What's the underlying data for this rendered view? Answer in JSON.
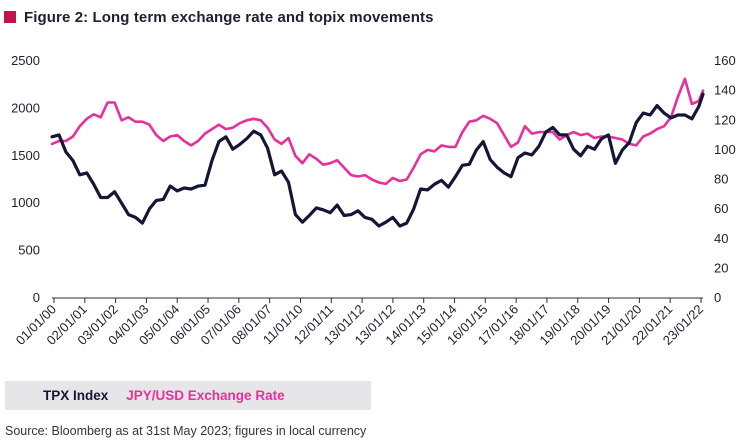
{
  "figure": {
    "title": "Figure 2: Long term exchange rate and topix movements",
    "source": "Source: Bloomberg as at 31st May 2023; figures in local currency"
  },
  "colors": {
    "marker": "#c0134f",
    "tpx": "#141635",
    "jpy": "#e8309a",
    "legend_bg": "#e6e6e8"
  },
  "legend": {
    "tpx_label": "TPX Index",
    "jpy_label": "JPY/USD Exchange Rate"
  },
  "chart_data": {
    "type": "line",
    "title": "Figure 2: Long term exchange rate and topix movements",
    "x_tick_labels": [
      "01/01/00",
      "02/01/01",
      "03/01/02",
      "04/01/03",
      "05/01/04",
      "06/01/05",
      "07/01/06",
      "08/01/07",
      "11/01/10",
      "12/01/11",
      "13/01/12",
      "13/01/12",
      "14/01/13",
      "15/01/14",
      "16/01/15",
      "17/01/16",
      "18/01/17",
      "19/01/18",
      "20/01/19",
      "21/01/20",
      "22/01/21",
      "23/01/22"
    ],
    "x_range": [
      2000.0,
      2023.4
    ],
    "y_left": {
      "range": [
        0,
        2500
      ],
      "ticks": [
        0,
        500,
        1000,
        1500,
        2000,
        2500
      ]
    },
    "y_right": {
      "range": [
        0,
        160
      ],
      "ticks": [
        0,
        20,
        40,
        60,
        80,
        100,
        120,
        140,
        160
      ]
    },
    "legend_position": "bottom-left",
    "grid": false,
    "series": [
      {
        "name": "TPX Index",
        "axis": "left",
        "points": [
          [
            2000.0,
            1700
          ],
          [
            2000.25,
            1720
          ],
          [
            2000.5,
            1540
          ],
          [
            2000.75,
            1450
          ],
          [
            2001.0,
            1300
          ],
          [
            2001.25,
            1320
          ],
          [
            2001.5,
            1200
          ],
          [
            2001.75,
            1060
          ],
          [
            2002.0,
            1060
          ],
          [
            2002.25,
            1120
          ],
          [
            2002.5,
            1000
          ],
          [
            2002.75,
            880
          ],
          [
            2003.0,
            850
          ],
          [
            2003.25,
            790
          ],
          [
            2003.5,
            940
          ],
          [
            2003.75,
            1030
          ],
          [
            2004.0,
            1040
          ],
          [
            2004.25,
            1180
          ],
          [
            2004.5,
            1130
          ],
          [
            2004.75,
            1160
          ],
          [
            2005.0,
            1150
          ],
          [
            2005.25,
            1180
          ],
          [
            2005.5,
            1190
          ],
          [
            2005.75,
            1450
          ],
          [
            2006.0,
            1650
          ],
          [
            2006.25,
            1700
          ],
          [
            2006.5,
            1570
          ],
          [
            2006.75,
            1620
          ],
          [
            2007.0,
            1680
          ],
          [
            2007.25,
            1760
          ],
          [
            2007.5,
            1720
          ],
          [
            2007.75,
            1580
          ],
          [
            2008.0,
            1300
          ],
          [
            2008.25,
            1340
          ],
          [
            2008.5,
            1220
          ],
          [
            2008.75,
            880
          ],
          [
            2009.0,
            800
          ],
          [
            2009.25,
            870
          ],
          [
            2009.5,
            950
          ],
          [
            2009.75,
            930
          ],
          [
            2010.0,
            900
          ],
          [
            2010.25,
            980
          ],
          [
            2010.5,
            870
          ],
          [
            2010.75,
            880
          ],
          [
            2011.0,
            920
          ],
          [
            2011.25,
            850
          ],
          [
            2011.5,
            830
          ],
          [
            2011.75,
            760
          ],
          [
            2012.0,
            800
          ],
          [
            2012.25,
            850
          ],
          [
            2012.5,
            760
          ],
          [
            2012.75,
            790
          ],
          [
            2013.0,
            940
          ],
          [
            2013.25,
            1150
          ],
          [
            2013.5,
            1140
          ],
          [
            2013.75,
            1200
          ],
          [
            2014.0,
            1240
          ],
          [
            2014.25,
            1170
          ],
          [
            2014.5,
            1280
          ],
          [
            2014.75,
            1400
          ],
          [
            2015.0,
            1410
          ],
          [
            2015.25,
            1560
          ],
          [
            2015.5,
            1650
          ],
          [
            2015.75,
            1460
          ],
          [
            2016.0,
            1380
          ],
          [
            2016.25,
            1320
          ],
          [
            2016.5,
            1280
          ],
          [
            2016.75,
            1480
          ],
          [
            2017.0,
            1530
          ],
          [
            2017.25,
            1510
          ],
          [
            2017.5,
            1600
          ],
          [
            2017.75,
            1750
          ],
          [
            2018.0,
            1800
          ],
          [
            2018.25,
            1720
          ],
          [
            2018.5,
            1720
          ],
          [
            2018.75,
            1570
          ],
          [
            2019.0,
            1500
          ],
          [
            2019.25,
            1600
          ],
          [
            2019.5,
            1570
          ],
          [
            2019.75,
            1680
          ],
          [
            2020.0,
            1720
          ],
          [
            2020.25,
            1420
          ],
          [
            2020.5,
            1560
          ],
          [
            2020.75,
            1640
          ],
          [
            2021.0,
            1850
          ],
          [
            2021.25,
            1950
          ],
          [
            2021.5,
            1930
          ],
          [
            2021.75,
            2030
          ],
          [
            2022.0,
            1950
          ],
          [
            2022.25,
            1900
          ],
          [
            2022.5,
            1930
          ],
          [
            2022.75,
            1930
          ],
          [
            2023.0,
            1890
          ],
          [
            2023.25,
            2020
          ],
          [
            2023.4,
            2150
          ]
        ]
      },
      {
        "name": "JPY/USD Exchange Rate",
        "axis": "right",
        "points": [
          [
            2000.0,
            104
          ],
          [
            2000.25,
            106
          ],
          [
            2000.5,
            106
          ],
          [
            2000.75,
            109
          ],
          [
            2001.0,
            116
          ],
          [
            2001.25,
            121
          ],
          [
            2001.5,
            124
          ],
          [
            2001.75,
            122
          ],
          [
            2002.0,
            132
          ],
          [
            2002.25,
            132
          ],
          [
            2002.5,
            120
          ],
          [
            2002.75,
            122
          ],
          [
            2003.0,
            119
          ],
          [
            2003.25,
            119
          ],
          [
            2003.5,
            117
          ],
          [
            2003.75,
            110
          ],
          [
            2004.0,
            106
          ],
          [
            2004.25,
            109
          ],
          [
            2004.5,
            110
          ],
          [
            2004.75,
            106
          ],
          [
            2005.0,
            103
          ],
          [
            2005.25,
            106
          ],
          [
            2005.5,
            111
          ],
          [
            2005.75,
            114
          ],
          [
            2006.0,
            117
          ],
          [
            2006.25,
            114
          ],
          [
            2006.5,
            115
          ],
          [
            2006.75,
            118
          ],
          [
            2007.0,
            120
          ],
          [
            2007.25,
            121
          ],
          [
            2007.5,
            120
          ],
          [
            2007.75,
            115
          ],
          [
            2008.0,
            107
          ],
          [
            2008.25,
            104
          ],
          [
            2008.5,
            108
          ],
          [
            2008.75,
            96
          ],
          [
            2009.0,
            91
          ],
          [
            2009.25,
            97
          ],
          [
            2009.5,
            94
          ],
          [
            2009.75,
            90
          ],
          [
            2010.0,
            91
          ],
          [
            2010.25,
            93
          ],
          [
            2010.5,
            88
          ],
          [
            2010.75,
            83
          ],
          [
            2011.0,
            82
          ],
          [
            2011.25,
            83
          ],
          [
            2011.5,
            80
          ],
          [
            2011.75,
            78
          ],
          [
            2012.0,
            77
          ],
          [
            2012.25,
            81
          ],
          [
            2012.5,
            79
          ],
          [
            2012.75,
            80
          ],
          [
            2013.0,
            88
          ],
          [
            2013.25,
            97
          ],
          [
            2013.5,
            100
          ],
          [
            2013.75,
            99
          ],
          [
            2014.0,
            103
          ],
          [
            2014.25,
            102
          ],
          [
            2014.5,
            102
          ],
          [
            2014.75,
            112
          ],
          [
            2015.0,
            119
          ],
          [
            2015.25,
            120
          ],
          [
            2015.5,
            123
          ],
          [
            2015.75,
            121
          ],
          [
            2016.0,
            118
          ],
          [
            2016.25,
            110
          ],
          [
            2016.5,
            102
          ],
          [
            2016.75,
            105
          ],
          [
            2017.0,
            116
          ],
          [
            2017.25,
            111
          ],
          [
            2017.5,
            112
          ],
          [
            2017.75,
            112
          ],
          [
            2018.0,
            112
          ],
          [
            2018.25,
            107
          ],
          [
            2018.5,
            110
          ],
          [
            2018.75,
            112
          ],
          [
            2019.0,
            110
          ],
          [
            2019.25,
            111
          ],
          [
            2019.5,
            108
          ],
          [
            2019.75,
            109
          ],
          [
            2020.0,
            109
          ],
          [
            2020.25,
            108
          ],
          [
            2020.5,
            107
          ],
          [
            2020.75,
            104
          ],
          [
            2021.0,
            103
          ],
          [
            2021.25,
            109
          ],
          [
            2021.5,
            111
          ],
          [
            2021.75,
            114
          ],
          [
            2022.0,
            116
          ],
          [
            2022.25,
            122
          ],
          [
            2022.5,
            136
          ],
          [
            2022.75,
            148
          ],
          [
            2023.0,
            131
          ],
          [
            2023.25,
            133
          ],
          [
            2023.4,
            140
          ]
        ]
      }
    ]
  }
}
